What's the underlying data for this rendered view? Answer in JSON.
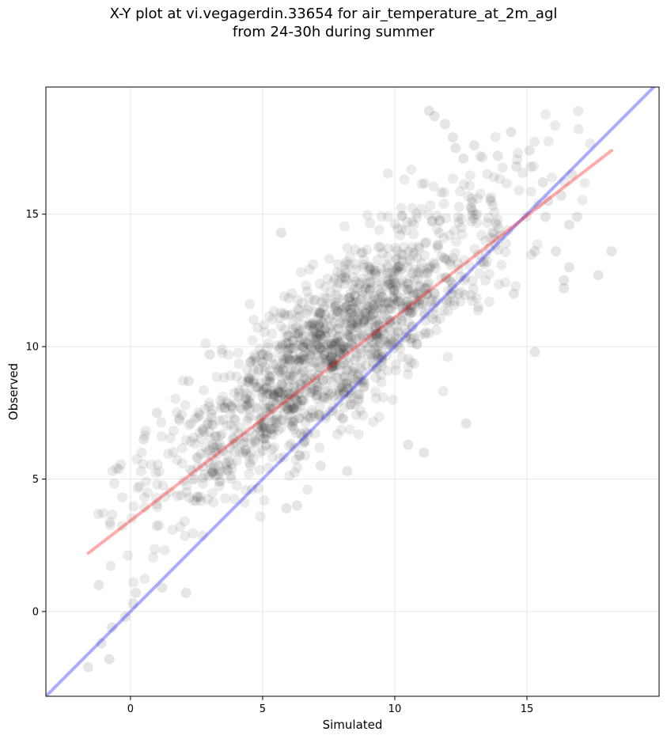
{
  "chart_data": {
    "type": "scatter",
    "title_line1": "X-Y plot at vi.vegagerdin.33654 for air_temperature_at_2m_agl",
    "title_line2": "from 24-30h during summer",
    "xlabel": "Simulated",
    "ylabel": "Observed",
    "xlim": [
      -3.2,
      20
    ],
    "ylim": [
      -3.2,
      19.8
    ],
    "xticks": [
      0,
      5,
      10,
      15
    ],
    "yticks": [
      0,
      5,
      10,
      15
    ],
    "grid": true,
    "n_points": 1500,
    "point_color": "#000000",
    "point_alpha": 0.08,
    "series": [
      {
        "type": "line",
        "role": "identity",
        "color": "#0000ff",
        "x": [
          -3.2,
          20
        ],
        "y": [
          -3.2,
          20
        ]
      },
      {
        "type": "line",
        "role": "regression-fit",
        "color": "#ff0000",
        "x": [
          -1.6,
          18.2
        ],
        "y": [
          2.2,
          17.4
        ]
      }
    ],
    "highlighted_points": [
      {
        "x": 11.3,
        "y": 18.9
      },
      {
        "x": 11.5,
        "y": 18.7
      },
      {
        "x": 11.9,
        "y": 18.4
      },
      {
        "x": 14.4,
        "y": 18.1
      },
      {
        "x": 12.2,
        "y": 17.9
      },
      {
        "x": 12.3,
        "y": 17.5
      },
      {
        "x": 13.0,
        "y": 17.6
      },
      {
        "x": 15.1,
        "y": 17.4
      },
      {
        "x": 13.9,
        "y": 17.2
      },
      {
        "x": 12.6,
        "y": 17.1
      },
      {
        "x": 14.6,
        "y": 16.8
      },
      {
        "x": 15.6,
        "y": 16.2
      },
      {
        "x": 16.7,
        "y": 16.5
      },
      {
        "x": 16.3,
        "y": 15.7
      },
      {
        "x": 15.8,
        "y": 15.5
      },
      {
        "x": 15.7,
        "y": 14.9
      },
      {
        "x": 16.9,
        "y": 14.9
      },
      {
        "x": 16.6,
        "y": 14.6
      },
      {
        "x": 5.7,
        "y": 14.3
      },
      {
        "x": 14.0,
        "y": 14.2
      },
      {
        "x": 18.2,
        "y": 13.6
      },
      {
        "x": 16.1,
        "y": 13.6
      },
      {
        "x": 15.3,
        "y": 13.6
      },
      {
        "x": 16.6,
        "y": 13.0
      },
      {
        "x": 17.7,
        "y": 12.7
      },
      {
        "x": 16.4,
        "y": 12.5
      },
      {
        "x": 16.4,
        "y": 12.2
      },
      {
        "x": 14.5,
        "y": 12.0
      },
      {
        "x": 15.3,
        "y": 9.8
      },
      {
        "x": 3.0,
        "y": 9.7
      },
      {
        "x": 2.2,
        "y": 8.7
      },
      {
        "x": 1.0,
        "y": 7.5
      },
      {
        "x": 0.5,
        "y": 6.5
      },
      {
        "x": 12.7,
        "y": 7.1
      },
      {
        "x": 11.1,
        "y": 6.0
      },
      {
        "x": 10.5,
        "y": 6.3
      },
      {
        "x": 8.2,
        "y": 5.3
      },
      {
        "x": 7.2,
        "y": 5.5
      },
      {
        "x": 6.3,
        "y": 4.0
      },
      {
        "x": 5.9,
        "y": 3.9
      },
      {
        "x": -1.2,
        "y": 1.0
      },
      {
        "x": 2.1,
        "y": 0.7
      },
      {
        "x": 0.2,
        "y": 0.7
      },
      {
        "x": 0.1,
        "y": 0.3
      },
      {
        "x": -0.2,
        "y": -0.2
      },
      {
        "x": -0.7,
        "y": -0.6
      },
      {
        "x": -1.1,
        "y": -1.2
      },
      {
        "x": -0.8,
        "y": -1.8
      },
      {
        "x": -1.6,
        "y": -2.1
      },
      {
        "x": 1.2,
        "y": 0.9
      }
    ]
  }
}
